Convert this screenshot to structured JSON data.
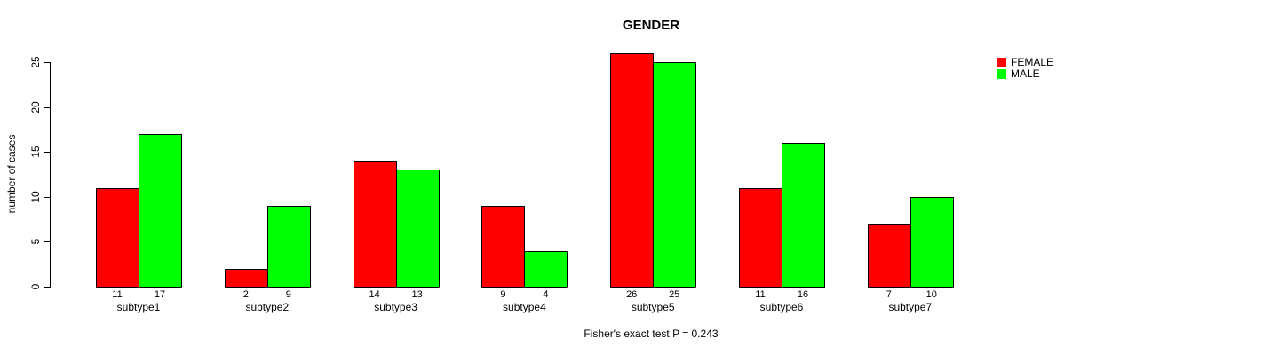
{
  "chart_data": {
    "type": "bar",
    "title": "GENDER",
    "ylabel": "number of cases",
    "xlabel": "",
    "categories": [
      "subtype1",
      "subtype2",
      "subtype3",
      "subtype4",
      "subtype5",
      "subtype6",
      "subtype7"
    ],
    "series": [
      {
        "name": "FEMALE",
        "color": "#ff0000",
        "values": [
          11,
          2,
          14,
          9,
          26,
          11,
          7
        ]
      },
      {
        "name": "MALE",
        "color": "#00ff00",
        "values": [
          17,
          9,
          13,
          4,
          25,
          16,
          10
        ]
      }
    ],
    "bar_value_labels": [
      [
        "11",
        "17"
      ],
      [
        "2",
        "9"
      ],
      [
        "14",
        "13"
      ],
      [
        "9",
        "4"
      ],
      [
        "26",
        "25"
      ],
      [
        "11",
        "16"
      ],
      [
        "7",
        "10"
      ]
    ],
    "yticks": [
      0,
      5,
      10,
      15,
      20,
      25
    ],
    "ylim": [
      0,
      25
    ],
    "grid": false,
    "legend_position": "right-outside-top",
    "footnote": "Fisher's exact test P = 0.243"
  }
}
